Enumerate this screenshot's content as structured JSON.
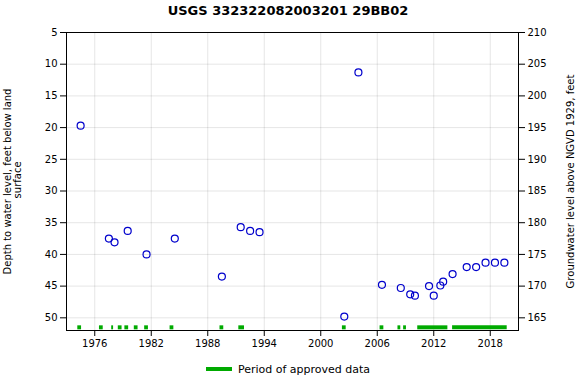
{
  "chart_data": {
    "type": "scatter",
    "title": "USGS 332322082003201 29BB02",
    "ylabel": "Depth to water level, feet below land\n surface",
    "y2label": "Groundwater level above NGVD 1929, feet",
    "xlim": [
      1973,
      2021
    ],
    "xticks": [
      1976,
      1982,
      1988,
      1994,
      2000,
      2006,
      2012,
      2018
    ],
    "ylim": [
      52,
      5
    ],
    "yticks": [
      5,
      10,
      15,
      20,
      25,
      30,
      35,
      40,
      45,
      50
    ],
    "y2lim": [
      163,
      210
    ],
    "y2ticks": [
      165,
      170,
      175,
      180,
      185,
      190,
      195,
      200,
      205,
      210
    ],
    "grid": true,
    "legend": "bottom",
    "series": [
      {
        "type": "scatter",
        "marker": "hollow",
        "color": "#0000cc",
        "x": [
          1974.5,
          1977.5,
          1978.1,
          1979.5,
          1981.5,
          1984.5,
          1989.5,
          1991.5,
          1992.5,
          1993.5,
          2002.5,
          2004.0,
          2006.5,
          2008.5,
          2009.5,
          2010.0,
          2011.5,
          2012.0,
          2012.7,
          2013.0,
          2014.0,
          2015.5,
          2016.5,
          2017.5,
          2018.5,
          2019.5
        ],
        "values": [
          19.7,
          37.5,
          38.1,
          36.3,
          40.0,
          37.5,
          43.5,
          35.7,
          36.3,
          36.5,
          49.8,
          11.3,
          44.8,
          45.3,
          46.3,
          46.5,
          45.0,
          46.5,
          44.9,
          44.3,
          43.1,
          42.0,
          42.0,
          41.3,
          41.3,
          41.3
        ]
      },
      {
        "type": "range",
        "name": "Period of approved data",
        "color": "#00aa00",
        "y": 51.5,
        "periods": [
          [
            1974.2,
            1974.6
          ],
          [
            1976.5,
            1976.9
          ],
          [
            1977.8,
            1978.0
          ],
          [
            1978.5,
            1978.9
          ],
          [
            1979.2,
            1979.6
          ],
          [
            1980.2,
            1980.6
          ],
          [
            1981.3,
            1981.7
          ],
          [
            1984.0,
            1984.4
          ],
          [
            1989.3,
            1989.7
          ],
          [
            1991.3,
            1991.9
          ],
          [
            2002.3,
            2002.7
          ],
          [
            2006.3,
            2006.7
          ],
          [
            2008.2,
            2008.5
          ],
          [
            2008.8,
            2009.1
          ],
          [
            2010.3,
            2013.5
          ],
          [
            2014.0,
            2019.8
          ]
        ]
      }
    ]
  }
}
